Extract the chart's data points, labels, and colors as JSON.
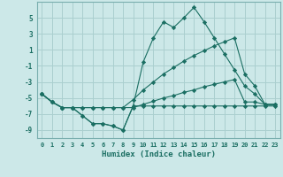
{
  "xlabel": "Humidex (Indice chaleur)",
  "background_color": "#cce8e8",
  "grid_color": "#aacfcf",
  "line_color": "#1a6e62",
  "x_values": [
    0,
    1,
    2,
    3,
    4,
    5,
    6,
    7,
    8,
    9,
    10,
    11,
    12,
    13,
    14,
    15,
    16,
    17,
    18,
    19,
    20,
    21,
    22,
    23
  ],
  "series1": [
    -4.5,
    -5.5,
    -6.2,
    -6.2,
    -7.2,
    -8.2,
    -8.2,
    -8.5,
    -9.0,
    -6.0,
    -6.0,
    -6.0,
    -6.0,
    -6.0,
    -6.0,
    -6.0,
    -6.0,
    -6.0,
    -6.0,
    -6.0,
    -6.0,
    -6.0,
    -6.0,
    -6.0
  ],
  "series2": [
    -4.5,
    -5.5,
    -6.2,
    -6.2,
    -6.2,
    -6.2,
    -6.2,
    -6.2,
    -6.2,
    -6.2,
    -5.8,
    -5.4,
    -5.0,
    -4.7,
    -4.3,
    -4.0,
    -3.6,
    -3.3,
    -3.0,
    -2.7,
    -5.5,
    -5.5,
    -5.8,
    -5.8
  ],
  "series3": [
    -4.5,
    -5.5,
    -6.2,
    -6.2,
    -6.2,
    -6.2,
    -6.2,
    -6.2,
    -6.2,
    -5.2,
    -4.0,
    -3.0,
    -2.0,
    -1.2,
    -0.4,
    0.3,
    0.9,
    1.5,
    2.0,
    2.5,
    -2.0,
    -3.5,
    -5.8,
    -5.8
  ],
  "series4": [
    -4.5,
    -5.5,
    -6.2,
    -6.2,
    -7.2,
    -8.2,
    -8.2,
    -8.5,
    -9.0,
    -6.0,
    -0.5,
    2.5,
    4.5,
    3.8,
    5.0,
    6.3,
    4.5,
    2.5,
    0.5,
    -1.5,
    -3.5,
    -4.5,
    -5.8,
    -5.8
  ],
  "ylim": [
    -10,
    7
  ],
  "yticks": [
    -9,
    -7,
    -5,
    -3,
    -1,
    1,
    3,
    5
  ],
  "xticks": [
    0,
    1,
    2,
    3,
    4,
    5,
    6,
    7,
    8,
    9,
    10,
    11,
    12,
    13,
    14,
    15,
    16,
    17,
    18,
    19,
    20,
    21,
    22,
    23
  ]
}
